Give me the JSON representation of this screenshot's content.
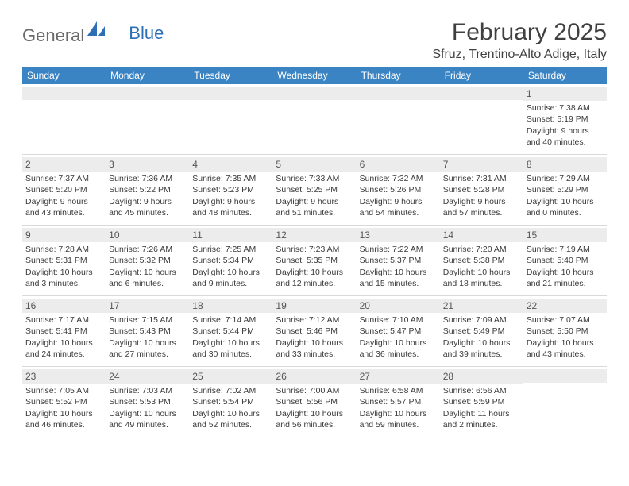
{
  "logo": {
    "text1": "General",
    "text2": "Blue",
    "text1_color": "#6a6a6a",
    "text2_color": "#2d6fb5",
    "icon_color": "#2d6fb5"
  },
  "header": {
    "month": "February 2025",
    "location": "Sfruz, Trentino-Alto Adige, Italy"
  },
  "colors": {
    "header_bg": "#3b84c4",
    "header_text": "#ffffff",
    "daynum_bg": "#ececec",
    "daynum_text": "#555555",
    "body_text": "#3a3a3a",
    "divider": "#d9d9d9",
    "page_bg": "#ffffff"
  },
  "typography": {
    "month_fontsize": 30,
    "location_fontsize": 16,
    "dayhead_fontsize": 12,
    "daynum_fontsize": 12,
    "detail_fontsize": 10.5
  },
  "layout": {
    "columns": 7,
    "rows": 5,
    "cell_min_height": 88
  },
  "day_headers": [
    "Sunday",
    "Monday",
    "Tuesday",
    "Wednesday",
    "Thursday",
    "Friday",
    "Saturday"
  ],
  "weeks": [
    [
      {
        "empty": true
      },
      {
        "empty": true
      },
      {
        "empty": true
      },
      {
        "empty": true
      },
      {
        "empty": true
      },
      {
        "empty": true
      },
      {
        "n": "1",
        "sunrise": "Sunrise: 7:38 AM",
        "sunset": "Sunset: 5:19 PM",
        "daylight": "Daylight: 9 hours and 40 minutes."
      }
    ],
    [
      {
        "n": "2",
        "sunrise": "Sunrise: 7:37 AM",
        "sunset": "Sunset: 5:20 PM",
        "daylight": "Daylight: 9 hours and 43 minutes."
      },
      {
        "n": "3",
        "sunrise": "Sunrise: 7:36 AM",
        "sunset": "Sunset: 5:22 PM",
        "daylight": "Daylight: 9 hours and 45 minutes."
      },
      {
        "n": "4",
        "sunrise": "Sunrise: 7:35 AM",
        "sunset": "Sunset: 5:23 PM",
        "daylight": "Daylight: 9 hours and 48 minutes."
      },
      {
        "n": "5",
        "sunrise": "Sunrise: 7:33 AM",
        "sunset": "Sunset: 5:25 PM",
        "daylight": "Daylight: 9 hours and 51 minutes."
      },
      {
        "n": "6",
        "sunrise": "Sunrise: 7:32 AM",
        "sunset": "Sunset: 5:26 PM",
        "daylight": "Daylight: 9 hours and 54 minutes."
      },
      {
        "n": "7",
        "sunrise": "Sunrise: 7:31 AM",
        "sunset": "Sunset: 5:28 PM",
        "daylight": "Daylight: 9 hours and 57 minutes."
      },
      {
        "n": "8",
        "sunrise": "Sunrise: 7:29 AM",
        "sunset": "Sunset: 5:29 PM",
        "daylight": "Daylight: 10 hours and 0 minutes."
      }
    ],
    [
      {
        "n": "9",
        "sunrise": "Sunrise: 7:28 AM",
        "sunset": "Sunset: 5:31 PM",
        "daylight": "Daylight: 10 hours and 3 minutes."
      },
      {
        "n": "10",
        "sunrise": "Sunrise: 7:26 AM",
        "sunset": "Sunset: 5:32 PM",
        "daylight": "Daylight: 10 hours and 6 minutes."
      },
      {
        "n": "11",
        "sunrise": "Sunrise: 7:25 AM",
        "sunset": "Sunset: 5:34 PM",
        "daylight": "Daylight: 10 hours and 9 minutes."
      },
      {
        "n": "12",
        "sunrise": "Sunrise: 7:23 AM",
        "sunset": "Sunset: 5:35 PM",
        "daylight": "Daylight: 10 hours and 12 minutes."
      },
      {
        "n": "13",
        "sunrise": "Sunrise: 7:22 AM",
        "sunset": "Sunset: 5:37 PM",
        "daylight": "Daylight: 10 hours and 15 minutes."
      },
      {
        "n": "14",
        "sunrise": "Sunrise: 7:20 AM",
        "sunset": "Sunset: 5:38 PM",
        "daylight": "Daylight: 10 hours and 18 minutes."
      },
      {
        "n": "15",
        "sunrise": "Sunrise: 7:19 AM",
        "sunset": "Sunset: 5:40 PM",
        "daylight": "Daylight: 10 hours and 21 minutes."
      }
    ],
    [
      {
        "n": "16",
        "sunrise": "Sunrise: 7:17 AM",
        "sunset": "Sunset: 5:41 PM",
        "daylight": "Daylight: 10 hours and 24 minutes."
      },
      {
        "n": "17",
        "sunrise": "Sunrise: 7:15 AM",
        "sunset": "Sunset: 5:43 PM",
        "daylight": "Daylight: 10 hours and 27 minutes."
      },
      {
        "n": "18",
        "sunrise": "Sunrise: 7:14 AM",
        "sunset": "Sunset: 5:44 PM",
        "daylight": "Daylight: 10 hours and 30 minutes."
      },
      {
        "n": "19",
        "sunrise": "Sunrise: 7:12 AM",
        "sunset": "Sunset: 5:46 PM",
        "daylight": "Daylight: 10 hours and 33 minutes."
      },
      {
        "n": "20",
        "sunrise": "Sunrise: 7:10 AM",
        "sunset": "Sunset: 5:47 PM",
        "daylight": "Daylight: 10 hours and 36 minutes."
      },
      {
        "n": "21",
        "sunrise": "Sunrise: 7:09 AM",
        "sunset": "Sunset: 5:49 PM",
        "daylight": "Daylight: 10 hours and 39 minutes."
      },
      {
        "n": "22",
        "sunrise": "Sunrise: 7:07 AM",
        "sunset": "Sunset: 5:50 PM",
        "daylight": "Daylight: 10 hours and 43 minutes."
      }
    ],
    [
      {
        "n": "23",
        "sunrise": "Sunrise: 7:05 AM",
        "sunset": "Sunset: 5:52 PM",
        "daylight": "Daylight: 10 hours and 46 minutes."
      },
      {
        "n": "24",
        "sunrise": "Sunrise: 7:03 AM",
        "sunset": "Sunset: 5:53 PM",
        "daylight": "Daylight: 10 hours and 49 minutes."
      },
      {
        "n": "25",
        "sunrise": "Sunrise: 7:02 AM",
        "sunset": "Sunset: 5:54 PM",
        "daylight": "Daylight: 10 hours and 52 minutes."
      },
      {
        "n": "26",
        "sunrise": "Sunrise: 7:00 AM",
        "sunset": "Sunset: 5:56 PM",
        "daylight": "Daylight: 10 hours and 56 minutes."
      },
      {
        "n": "27",
        "sunrise": "Sunrise: 6:58 AM",
        "sunset": "Sunset: 5:57 PM",
        "daylight": "Daylight: 10 hours and 59 minutes."
      },
      {
        "n": "28",
        "sunrise": "Sunrise: 6:56 AM",
        "sunset": "Sunset: 5:59 PM",
        "daylight": "Daylight: 11 hours and 2 minutes."
      },
      {
        "empty": true
      }
    ]
  ]
}
